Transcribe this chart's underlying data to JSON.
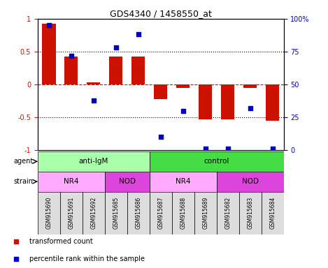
{
  "title": "GDS4340 / 1458550_at",
  "samples": [
    "GSM915690",
    "GSM915691",
    "GSM915692",
    "GSM915685",
    "GSM915686",
    "GSM915687",
    "GSM915688",
    "GSM915689",
    "GSM915682",
    "GSM915683",
    "GSM915684"
  ],
  "bar_values": [
    0.92,
    0.42,
    0.03,
    0.42,
    0.42,
    -0.22,
    -0.05,
    -0.53,
    -0.53,
    -0.05,
    -0.55
  ],
  "dot_values": [
    0.95,
    0.72,
    0.38,
    0.78,
    0.88,
    0.1,
    0.3,
    0.01,
    0.01,
    0.32,
    0.01
  ],
  "bar_color": "#cc1100",
  "dot_color": "#0000cc",
  "ylim": [
    -1,
    1
  ],
  "y_right_ticks": [
    0,
    25,
    50,
    75,
    100
  ],
  "y_right_labels": [
    "0",
    "25",
    "50",
    "75",
    "100%"
  ],
  "y_left_ticks": [
    -1,
    -0.5,
    0,
    0.5,
    1
  ],
  "y_left_labels": [
    "-1",
    "-0.5",
    "0",
    "0.5",
    "1"
  ],
  "hlines_dotted": [
    -0.5,
    0.5
  ],
  "agent_groups": [
    {
      "label": "anti-IgM",
      "start": 0,
      "end": 5,
      "color": "#aaffaa"
    },
    {
      "label": "control",
      "start": 5,
      "end": 11,
      "color": "#44dd44"
    }
  ],
  "strain_groups": [
    {
      "label": "NR4",
      "start": 0,
      "end": 3,
      "color": "#ffaaff"
    },
    {
      "label": "NOD",
      "start": 3,
      "end": 5,
      "color": "#dd44dd"
    },
    {
      "label": "NR4",
      "start": 5,
      "end": 8,
      "color": "#ffaaff"
    },
    {
      "label": "NOD",
      "start": 8,
      "end": 11,
      "color": "#dd44dd"
    }
  ],
  "legend_items": [
    {
      "label": "transformed count",
      "color": "#cc1100"
    },
    {
      "label": "percentile rank within the sample",
      "color": "#0000cc"
    }
  ],
  "sample_box_color": "#dddddd",
  "background_color": "#ffffff",
  "dashed_line_color": "#cc1100"
}
